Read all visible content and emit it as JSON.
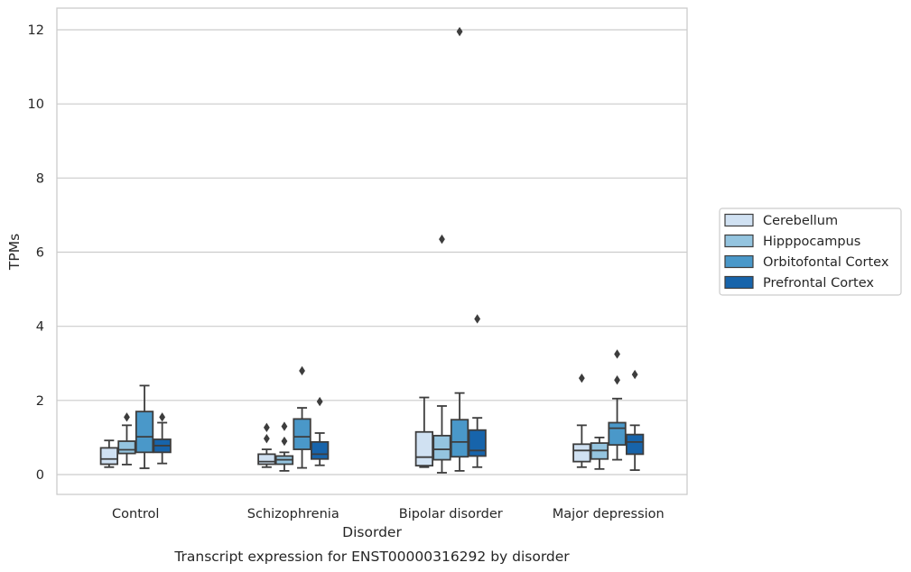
{
  "caption": "Transcript expression for ENST00000316292 by disorder",
  "chart_data": {
    "type": "box",
    "xlabel": "Disorder",
    "ylabel": "TPMs",
    "ylim": [
      -0.5,
      12.55
    ],
    "yticks": [
      0,
      2,
      4,
      6,
      8,
      10,
      12
    ],
    "grid": "horizontal",
    "legend_position": "right, outside plot",
    "categories": [
      "Control",
      "Schizophrenia",
      "Bipolar disorder",
      "Major depression"
    ],
    "series": [
      {
        "name": "Cerebellum",
        "color": "#d0e1f2",
        "boxes": [
          {
            "whislo": 0.2,
            "q1": 0.28,
            "med": 0.42,
            "q3": 0.72,
            "whishi": 0.92,
            "fliers": []
          },
          {
            "whislo": 0.2,
            "q1": 0.28,
            "med": 0.35,
            "q3": 0.55,
            "whishi": 0.68,
            "fliers": [
              0.97,
              1.27
            ]
          },
          {
            "whislo": 0.2,
            "q1": 0.24,
            "med": 0.47,
            "q3": 1.15,
            "whishi": 2.08,
            "fliers": []
          },
          {
            "whislo": 0.2,
            "q1": 0.35,
            "med": 0.65,
            "q3": 0.82,
            "whishi": 1.33,
            "fliers": [
              2.6
            ]
          }
        ]
      },
      {
        "name": "Hipppocampus",
        "color": "#94c4df",
        "boxes": [
          {
            "whislo": 0.27,
            "q1": 0.57,
            "med": 0.67,
            "q3": 0.9,
            "whishi": 1.33,
            "fliers": [
              1.55
            ]
          },
          {
            "whislo": 0.1,
            "q1": 0.28,
            "med": 0.4,
            "q3": 0.5,
            "whishi": 0.6,
            "fliers": [
              0.9,
              1.3
            ]
          },
          {
            "whislo": 0.05,
            "q1": 0.4,
            "med": 0.68,
            "q3": 1.05,
            "whishi": 1.85,
            "fliers": [
              6.35
            ]
          },
          {
            "whislo": 0.15,
            "q1": 0.42,
            "med": 0.65,
            "q3": 0.85,
            "whishi": 1.0,
            "fliers": []
          }
        ]
      },
      {
        "name": "Orbitofontal Cortex",
        "color": "#4a98c9",
        "boxes": [
          {
            "whislo": 0.17,
            "q1": 0.6,
            "med": 1.02,
            "q3": 1.7,
            "whishi": 2.4,
            "fliers": []
          },
          {
            "whislo": 0.18,
            "q1": 0.68,
            "med": 1.02,
            "q3": 1.5,
            "whishi": 1.8,
            "fliers": [
              2.8
            ]
          },
          {
            "whislo": 0.1,
            "q1": 0.48,
            "med": 0.88,
            "q3": 1.48,
            "whishi": 2.2,
            "fliers": [
              11.95
            ]
          },
          {
            "whislo": 0.4,
            "q1": 0.8,
            "med": 1.25,
            "q3": 1.4,
            "whishi": 2.05,
            "fliers": [
              2.55,
              3.25
            ]
          }
        ]
      },
      {
        "name": "Prefrontal Cortex",
        "color": "#1764ab",
        "boxes": [
          {
            "whislo": 0.3,
            "q1": 0.6,
            "med": 0.78,
            "q3": 0.95,
            "whishi": 1.4,
            "fliers": [
              1.55
            ]
          },
          {
            "whislo": 0.25,
            "q1": 0.42,
            "med": 0.55,
            "q3": 0.88,
            "whishi": 1.12,
            "fliers": [
              1.97
            ]
          },
          {
            "whislo": 0.2,
            "q1": 0.5,
            "med": 0.65,
            "q3": 1.2,
            "whishi": 1.53,
            "fliers": [
              4.2
            ]
          },
          {
            "whislo": 0.12,
            "q1": 0.55,
            "med": 0.88,
            "q3": 1.08,
            "whishi": 1.33,
            "fliers": [
              2.7
            ]
          }
        ]
      }
    ]
  }
}
